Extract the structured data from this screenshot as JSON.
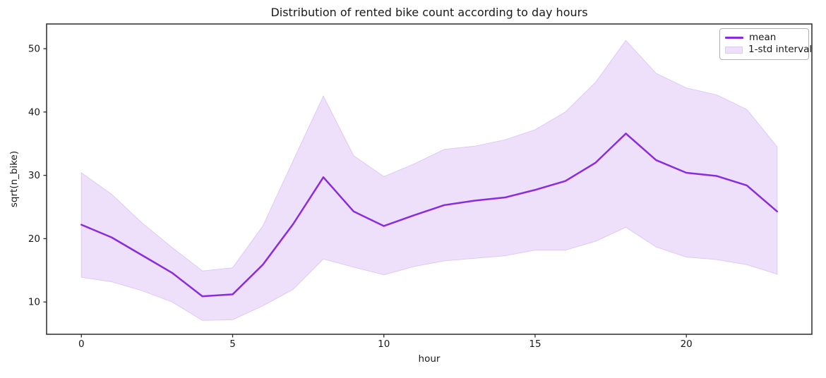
{
  "title": "Distribution of rented bike count according to day hours",
  "axes": {
    "xlabel": "hour",
    "ylabel": "sqrt(n_bike)"
  },
  "legend": {
    "items": [
      {
        "label": "mean",
        "swatch": "line"
      },
      {
        "label": "1-std interval",
        "swatch": "patch"
      }
    ]
  },
  "colors": {
    "mean_line": "#8A2BE2",
    "band_fill": "#EEE0FB",
    "band_edge": "#DFC9F5",
    "spine": "#2b2b2b",
    "text": "#1a1a1a",
    "legend_border": "#b0b0b0"
  },
  "chart_data": {
    "type": "line",
    "title": "Distribution of rented bike count according to day hours",
    "xlabel": "hour",
    "ylabel": "sqrt(n_bike)",
    "x": [
      0,
      1,
      2,
      3,
      4,
      5,
      6,
      7,
      8,
      9,
      10,
      11,
      12,
      13,
      14,
      15,
      16,
      17,
      18,
      19,
      20,
      21,
      22,
      23
    ],
    "series": [
      {
        "name": "mean",
        "values": [
          22.2,
          20.2,
          17.4,
          14.6,
          10.9,
          11.2,
          15.9,
          22.3,
          29.7,
          24.3,
          22.0,
          23.7,
          25.3,
          26.0,
          26.5,
          27.7,
          29.1,
          32.0,
          36.6,
          32.4,
          30.4,
          29.9,
          28.4,
          24.3
        ]
      },
      {
        "name": "1-std upper",
        "values": [
          30.4,
          27.0,
          22.5,
          18.6,
          14.9,
          15.4,
          22.0,
          32.3,
          42.5,
          33.1,
          29.8,
          31.8,
          34.1,
          34.6,
          35.6,
          37.2,
          40.0,
          44.7,
          51.3,
          46.1,
          43.8,
          42.7,
          40.4,
          34.5
        ]
      },
      {
        "name": "1-std lower",
        "values": [
          13.9,
          13.2,
          11.8,
          10.0,
          7.1,
          7.2,
          9.4,
          12.0,
          16.8,
          15.5,
          14.3,
          15.6,
          16.5,
          16.9,
          17.3,
          18.2,
          18.2,
          19.6,
          21.8,
          18.7,
          17.1,
          16.7,
          15.9,
          14.4
        ]
      }
    ],
    "xticks": [
      0,
      5,
      10,
      15,
      20
    ],
    "yticks": [
      10,
      20,
      30,
      40,
      50
    ],
    "xlim": [
      -1.15,
      24.15
    ],
    "ylim": [
      4.9,
      53.9
    ],
    "grid": false,
    "legend_position": "upper right"
  }
}
